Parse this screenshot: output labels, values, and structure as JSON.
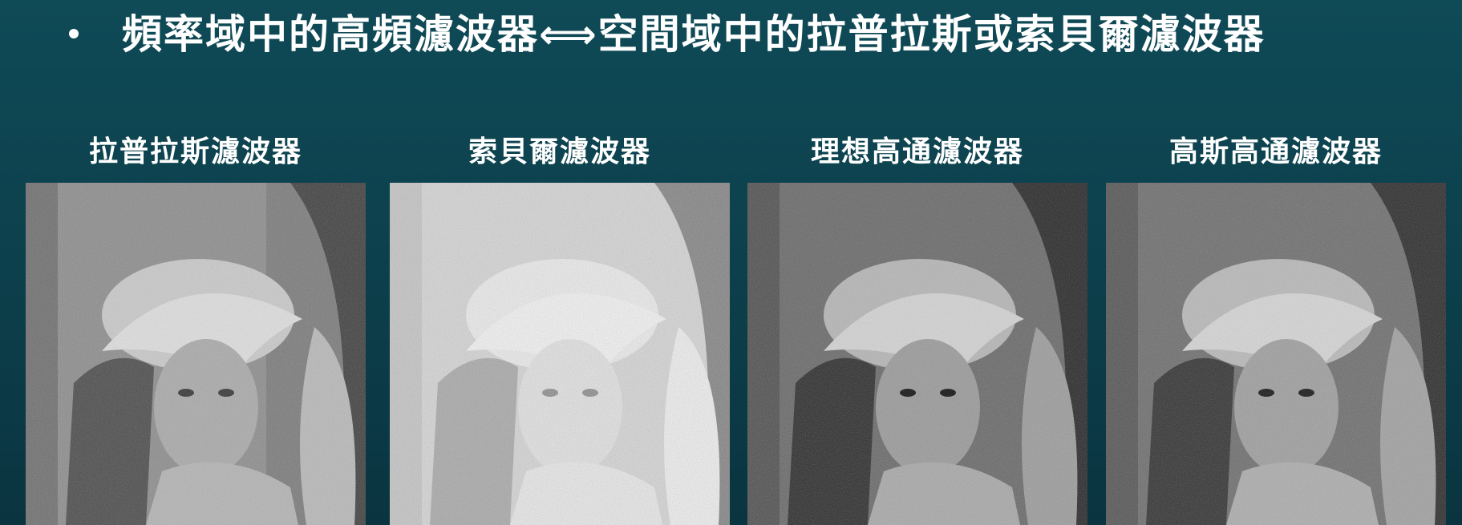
{
  "bullet": {
    "text": "頻率域中的高頻濾波器⟺空間域中的拉普拉斯或索貝爾濾波器"
  },
  "panels": [
    {
      "label": "拉普拉斯濾波器"
    },
    {
      "label": "索貝爾濾波器"
    },
    {
      "label": "理想高通濾波器"
    },
    {
      "label": "高斯高通濾波器"
    }
  ],
  "colors": {
    "background": "#0e4653",
    "text": "#ffffff"
  }
}
